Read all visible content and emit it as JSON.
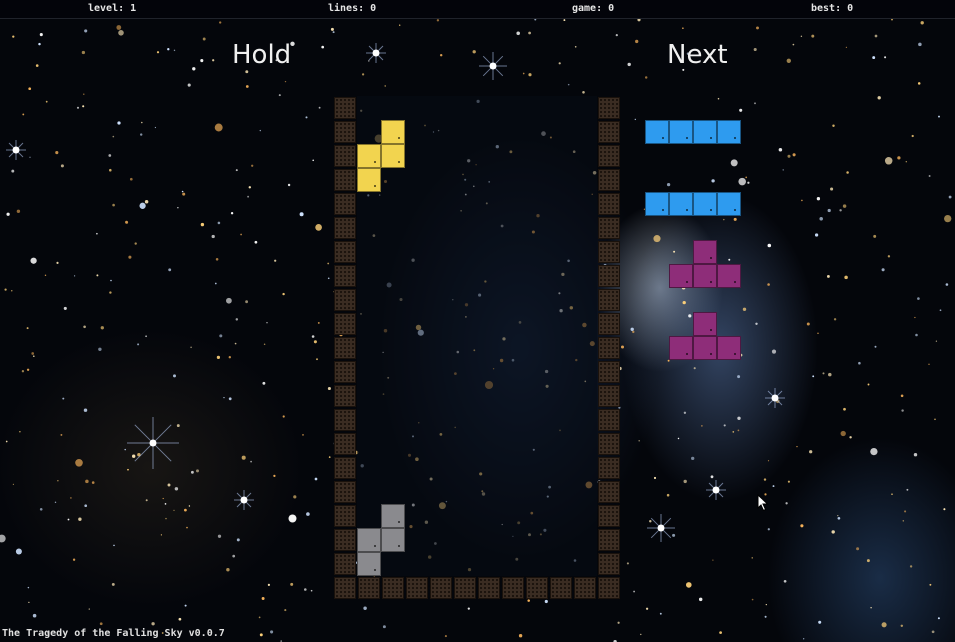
{
  "stats": {
    "level": "level: 1",
    "lines": "lines: 0",
    "game": "game: 0",
    "best": "best: 0"
  },
  "hold": {
    "title": "Hold",
    "piece": "S",
    "color": "#f2d44f",
    "cells": [
      [
        1,
        0
      ],
      [
        1,
        1
      ],
      [
        0,
        1
      ],
      [
        0,
        2
      ]
    ]
  },
  "next": {
    "title": "Next",
    "queue": [
      {
        "piece": "I",
        "color": "#2e9bef",
        "cells": [
          [
            0,
            0
          ],
          [
            1,
            0
          ],
          [
            2,
            0
          ],
          [
            3,
            0
          ]
        ]
      },
      {
        "piece": "I",
        "color": "#2e9bef",
        "cells": [
          [
            0,
            0
          ],
          [
            1,
            0
          ],
          [
            2,
            0
          ],
          [
            3,
            0
          ]
        ]
      },
      {
        "piece": "T",
        "color": "#8e2d79",
        "cells": [
          [
            1,
            0
          ],
          [
            0,
            1
          ],
          [
            1,
            1
          ],
          [
            2,
            1
          ]
        ]
      },
      {
        "piece": "T",
        "color": "#8e2d79",
        "cells": [
          [
            1,
            0
          ],
          [
            0,
            1
          ],
          [
            1,
            1
          ],
          [
            2,
            1
          ]
        ]
      }
    ]
  },
  "board": {
    "columns": 10,
    "rows": 20,
    "ghost_color": "#8a8a8e",
    "ghost_cells": [
      [
        1,
        17
      ],
      [
        1,
        18
      ],
      [
        0,
        18
      ],
      [
        0,
        19
      ]
    ],
    "wall_color": "#3a2c22"
  },
  "footer": {
    "title": "The Tragedy of the Falling Sky v0.0.7"
  },
  "icons": {
    "cursor": "mouse-pointer-icon"
  }
}
